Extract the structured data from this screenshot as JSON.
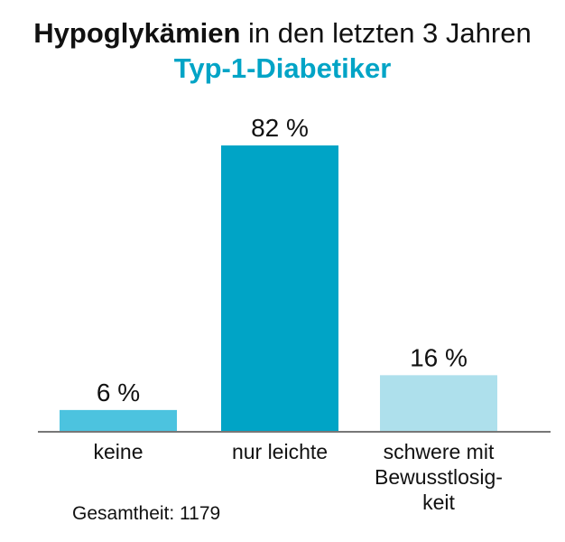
{
  "header": {
    "title_bold": "Hypoglykämien",
    "title_rest": " in den letzten 3 Jahren",
    "subtitle": "Typ-1-Diabetiker"
  },
  "colors": {
    "subtitle": "#00a4c6",
    "bars": [
      "#4cc3df",
      "#00a4c6",
      "#aee0ec"
    ],
    "axis": "#777777",
    "text": "#111111"
  },
  "chart_data": {
    "type": "bar",
    "title": "Hypoglykämien in den letzten 3 Jahren",
    "subtitle": "Typ-1-Diabetiker",
    "categories": [
      [
        "keine"
      ],
      [
        "nur leichte"
      ],
      [
        "schwere mit",
        "Bewusstlosig-",
        "keit"
      ]
    ],
    "values": [
      6,
      82,
      16
    ],
    "value_labels": [
      "6 %",
      "82 %",
      "16 %"
    ],
    "unit": "%",
    "ylim": [
      0,
      100
    ],
    "grid": false,
    "legend": "none"
  },
  "footnote": "Gesamtheit: 1179"
}
